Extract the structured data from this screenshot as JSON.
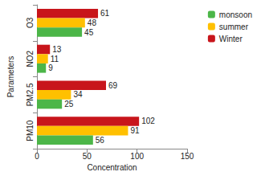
{
  "chart_data": {
    "type": "bar",
    "orientation": "horizontal",
    "categories": [
      "PM10",
      "PM2.5",
      "NO2",
      "O3"
    ],
    "x_label": "Concentration",
    "y_label": "Parameters",
    "series": [
      {
        "name": "monsoon",
        "color": "#4cb648",
        "values": [
          56,
          25,
          9,
          45
        ]
      },
      {
        "name": "summer",
        "color": "#ffc000",
        "values": [
          91,
          34,
          11,
          48
        ]
      },
      {
        "name": "Winter",
        "color": "#c8151b",
        "values": [
          102,
          69,
          13,
          61
        ]
      }
    ],
    "xlim": [
      0,
      150
    ],
    "xticks": [
      0,
      50,
      100,
      150
    ],
    "grid": false,
    "legend": "top-right",
    "data_labels": true
  }
}
